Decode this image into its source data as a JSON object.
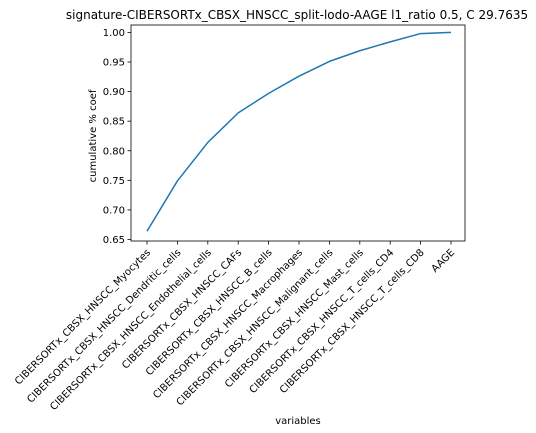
{
  "chart_data": {
    "type": "line",
    "title": "signature-CIBERSORTx_CBSX_HNSCC_split-lodo-AAGE l1_ratio 0.5, C 29.7635",
    "xlabel": "variables",
    "ylabel": "cumulative % coef",
    "categories": [
      "CIBERSORTx_CBSX_HNSCC_Myocytes",
      "CIBERSORTx_CBSX_HNSCC_Dendritic_cells",
      "CIBERSORTx_CBSX_HNSCC_Endothelial_cells",
      "CIBERSORTx_CBSX_HNSCC_CAFs",
      "CIBERSORTx_CBSX_HNSCC_B_cells",
      "CIBERSORTx_CBSX_HNSCC_Macrophages",
      "CIBERSORTx_CBSX_HNSCC_Malignant_cells",
      "CIBERSORTx_CBSX_HNSCC_Mast_cells",
      "CIBERSORTx_CBSX_HNSCC_T_cells_CD4",
      "CIBERSORTx_CBSX_HNSCC_T_cells_CD8",
      "AAGE"
    ],
    "series": [
      {
        "values": [
          0.664,
          0.749,
          0.814,
          0.864,
          0.897,
          0.926,
          0.951,
          0.969,
          0.984,
          0.998,
          1.0
        ],
        "color": "#1f77b4"
      }
    ],
    "ylim": [
      0.6475,
      1.0125
    ],
    "yticks": [
      0.65,
      0.7,
      0.75,
      0.8,
      0.85,
      0.9,
      0.95,
      1.0
    ],
    "ytick_labels": [
      "0.65",
      "0.70",
      "0.75",
      "0.80",
      "0.85",
      "0.90",
      "0.95",
      "1.00"
    ],
    "grid": false,
    "legend": "none"
  }
}
